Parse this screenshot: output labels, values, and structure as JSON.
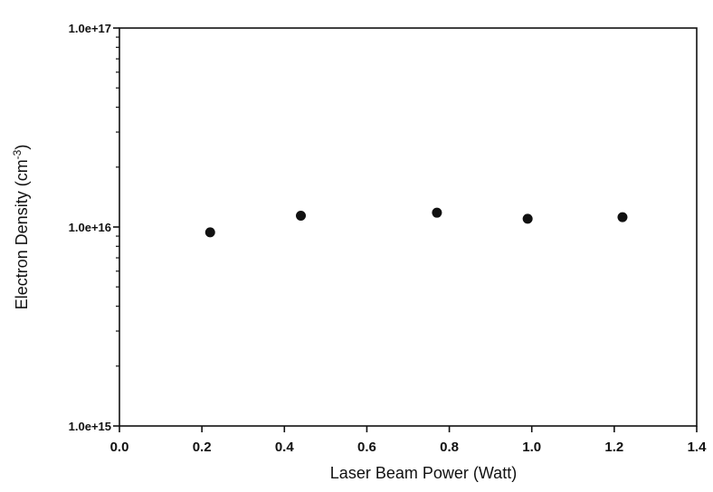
{
  "chart_data": {
    "type": "scatter",
    "xlabel": "Laser Beam Power (Watt)",
    "ylabel_main": "Electron Density (cm",
    "ylabel_sup": "-3",
    "ylabel_close": ")",
    "x_scale": "linear",
    "y_scale": "log",
    "xlim": [
      0.0,
      1.4
    ],
    "ylim": [
      1000000000000000.0,
      1e+17
    ],
    "x_ticks": [
      0.0,
      0.2,
      0.4,
      0.6,
      0.8,
      1.0,
      1.2,
      1.4
    ],
    "x_tick_labels": [
      "0.0",
      "0.2",
      "0.4",
      "0.6",
      "0.8",
      "1.0",
      "1.2",
      "1.4"
    ],
    "y_ticks": [
      1000000000000000.0,
      1e+16,
      1e+17
    ],
    "y_tick_labels": [
      "1.0e+15",
      "1.0e+16",
      "1.0e+17"
    ],
    "grid": false,
    "legend": "none",
    "marker_color": "#111111",
    "series": [
      {
        "x": [
          0.22,
          0.44,
          0.77,
          0.99,
          1.22
        ],
        "y": [
          9400000000000000.0,
          1.14e+16,
          1.18e+16,
          1.1e+16,
          1.12e+16
        ]
      }
    ]
  }
}
